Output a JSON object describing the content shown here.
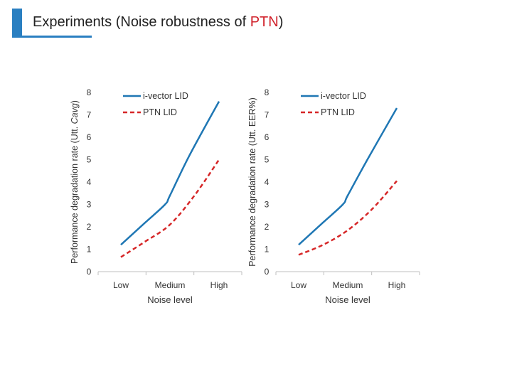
{
  "slide": {
    "title_prefix": "Experiments (Noise robustness of ",
    "title_highlight": "PTN",
    "title_suffix": ")",
    "accent_color": "#2a7fc1",
    "highlight_color": "#d0202a"
  },
  "chart_data": [
    {
      "type": "line",
      "ylabel": "Performance degradation rate (Utt. Cavg)",
      "ylabel_prefix": "Performance degradation rate (Utt. ",
      "ylabel_italic": "Cavg",
      "ylabel_suffix": ")",
      "xlabel": "Noise level",
      "categories": [
        "Low",
        "Medium",
        "High"
      ],
      "ylim": [
        0,
        8
      ],
      "yticks": [
        "0",
        "1",
        "2",
        "3",
        "4",
        "5",
        "6",
        "7",
        "8"
      ],
      "grid": false,
      "legend_position": "top-left",
      "series": [
        {
          "name": "i-vector LID",
          "color": "#1f77b4",
          "style": "solid",
          "points": [
            [
              0.0,
              1.2
            ],
            [
              0.5,
              2.2
            ],
            [
              0.9,
              3.0
            ],
            [
              1.0,
              3.4
            ],
            [
              1.4,
              5.2
            ],
            [
              2.0,
              7.6
            ]
          ]
        },
        {
          "name": "PTN LID",
          "color": "#d62728",
          "style": "dashed",
          "points": [
            [
              0.0,
              0.65
            ],
            [
              0.5,
              1.35
            ],
            [
              1.0,
              2.1
            ],
            [
              1.5,
              3.4
            ],
            [
              2.0,
              5.0
            ]
          ]
        }
      ]
    },
    {
      "type": "line",
      "ylabel": "Performance degradation rate (Utt. EER%)",
      "ylabel_prefix": "Performance degradation rate (Utt. EER%)",
      "ylabel_italic": "",
      "ylabel_suffix": "",
      "xlabel": "Noise level",
      "categories": [
        "Low",
        "Medium",
        "High"
      ],
      "ylim": [
        0,
        8
      ],
      "yticks": [
        "0",
        "1",
        "2",
        "3",
        "4",
        "5",
        "6",
        "7",
        "8"
      ],
      "grid": false,
      "legend_position": "top-left",
      "series": [
        {
          "name": "i-vector LID",
          "color": "#1f77b4",
          "style": "solid",
          "points": [
            [
              0.0,
              1.2
            ],
            [
              0.5,
              2.2
            ],
            [
              0.9,
              3.0
            ],
            [
              1.0,
              3.4
            ],
            [
              1.4,
              5.0
            ],
            [
              2.0,
              7.3
            ]
          ]
        },
        {
          "name": "PTN LID",
          "color": "#d62728",
          "style": "dashed",
          "points": [
            [
              0.0,
              0.75
            ],
            [
              0.5,
              1.2
            ],
            [
              1.0,
              1.85
            ],
            [
              1.5,
              2.8
            ],
            [
              2.0,
              4.05
            ]
          ]
        }
      ]
    }
  ]
}
